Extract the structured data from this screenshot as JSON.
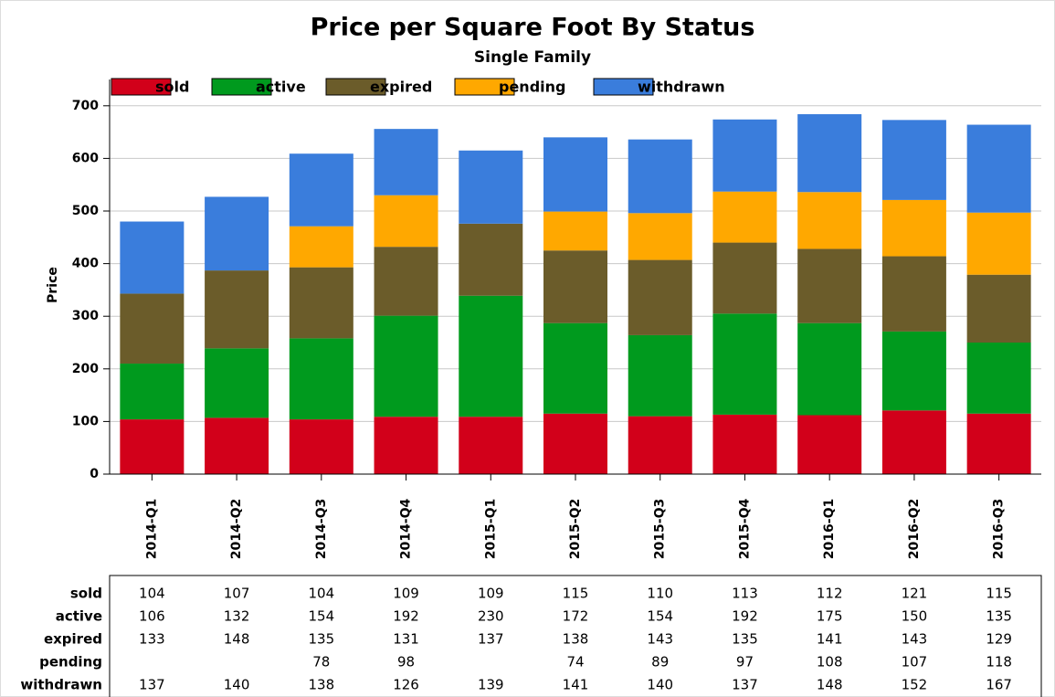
{
  "chart_data": {
    "type": "stacked_bar",
    "title": "Price per Square Foot By Status",
    "subtitle": "Single Family",
    "y_label": "Price",
    "categories": [
      "2014-Q1",
      "2014-Q2",
      "2014-Q3",
      "2014-Q4",
      "2015-Q1",
      "2015-Q2",
      "2015-Q3",
      "2015-Q4",
      "2016-Q1",
      "2016-Q2",
      "2016-Q3"
    ],
    "series": [
      {
        "name": "sold",
        "color": "#d2001a",
        "values": [
          104,
          107,
          104,
          109,
          109,
          115,
          110,
          113,
          112,
          121,
          115
        ]
      },
      {
        "name": "active",
        "color": "#009a1e",
        "values": [
          106,
          132,
          154,
          192,
          230,
          172,
          154,
          192,
          175,
          150,
          135
        ]
      },
      {
        "name": "expired",
        "color": "#6b5c2a",
        "values": [
          133,
          148,
          135,
          131,
          137,
          138,
          143,
          135,
          141,
          143,
          129
        ]
      },
      {
        "name": "pending",
        "color": "#ffa800",
        "values": [
          null,
          null,
          78,
          98,
          null,
          74,
          89,
          97,
          108,
          107,
          118
        ]
      },
      {
        "name": "withdrawn",
        "color": "#3a7ddc",
        "values": [
          137,
          140,
          138,
          126,
          139,
          141,
          140,
          137,
          148,
          152,
          167
        ]
      }
    ],
    "ylim": [
      0,
      750
    ],
    "yticks": [
      0,
      100,
      200,
      300,
      400,
      500,
      600,
      700
    ],
    "grid": true,
    "legend": "top"
  }
}
